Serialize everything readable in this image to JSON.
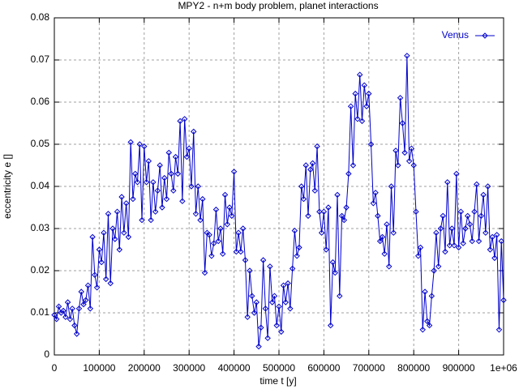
{
  "chart_data": {
    "type": "line",
    "title": "MPY2 - n+m body problem, planet interactions",
    "xlabel": "time t [y]",
    "ylabel": "eccentricity e []",
    "xlim": [
      0,
      1000000
    ],
    "ylim": [
      0,
      0.08
    ],
    "xticks": [
      0,
      100000,
      200000,
      300000,
      400000,
      500000,
      600000,
      700000,
      800000,
      900000,
      {
        "value": 1000000,
        "label": "1e+06"
      }
    ],
    "yticks": [
      0,
      0.01,
      0.02,
      0.03,
      0.04,
      0.05,
      0.06,
      0.07,
      0.08
    ],
    "grid": true,
    "legend": "top-right",
    "x": [
      0,
      5000,
      10000,
      15000,
      20000,
      25000,
      30000,
      35000,
      40000,
      45000,
      50000,
      55000,
      60000,
      65000,
      70000,
      75000,
      80000,
      85000,
      90000,
      95000,
      100000,
      105000,
      110000,
      115000,
      120000,
      125000,
      130000,
      135000,
      140000,
      145000,
      150000,
      155000,
      160000,
      165000,
      170000,
      175000,
      180000,
      185000,
      190000,
      195000,
      200000,
      205000,
      210000,
      215000,
      220000,
      225000,
      230000,
      235000,
      240000,
      245000,
      250000,
      255000,
      260000,
      265000,
      270000,
      275000,
      280000,
      285000,
      290000,
      295000,
      300000,
      305000,
      310000,
      315000,
      320000,
      325000,
      330000,
      335000,
      340000,
      345000,
      350000,
      355000,
      360000,
      365000,
      370000,
      375000,
      380000,
      385000,
      390000,
      395000,
      400000,
      405000,
      410000,
      415000,
      420000,
      425000,
      430000,
      435000,
      440000,
      445000,
      450000,
      455000,
      460000,
      465000,
      470000,
      475000,
      480000,
      485000,
      490000,
      495000,
      500000,
      505000,
      510000,
      515000,
      520000,
      525000,
      530000,
      535000,
      540000,
      545000,
      550000,
      555000,
      560000,
      565000,
      570000,
      575000,
      580000,
      585000,
      590000,
      595000,
      600000,
      605000,
      610000,
      615000,
      620000,
      625000,
      630000,
      635000,
      640000,
      645000,
      650000,
      655000,
      660000,
      665000,
      670000,
      675000,
      680000,
      685000,
      690000,
      695000,
      700000,
      705000,
      710000,
      715000,
      720000,
      725000,
      730000,
      735000,
      740000,
      745000,
      750000,
      755000,
      760000,
      765000,
      770000,
      775000,
      780000,
      785000,
      790000,
      795000,
      800000,
      805000,
      810000,
      815000,
      820000,
      825000,
      830000,
      835000,
      840000,
      845000,
      850000,
      855000,
      860000,
      865000,
      870000,
      875000,
      880000,
      885000,
      890000,
      895000,
      900000,
      905000,
      910000,
      915000,
      920000,
      925000,
      930000,
      935000,
      940000,
      945000,
      950000,
      955000,
      960000,
      965000,
      970000,
      975000,
      980000,
      985000,
      990000,
      995000,
      1000000
    ],
    "series": [
      {
        "name": "Venus",
        "color": "#0000cc",
        "values": [
          0.0095,
          0.0085,
          0.0115,
          0.01,
          0.0105,
          0.009,
          0.0125,
          0.0085,
          0.011,
          0.007,
          0.005,
          0.011,
          0.015,
          0.012,
          0.013,
          0.0165,
          0.011,
          0.028,
          0.019,
          0.016,
          0.025,
          0.022,
          0.029,
          0.018,
          0.0335,
          0.017,
          0.03,
          0.0275,
          0.034,
          0.025,
          0.0375,
          0.029,
          0.036,
          0.028,
          0.0505,
          0.037,
          0.043,
          0.041,
          0.05,
          0.032,
          0.0495,
          0.041,
          0.046,
          0.032,
          0.041,
          0.034,
          0.039,
          0.045,
          0.035,
          0.042,
          0.037,
          0.048,
          0.043,
          0.039,
          0.047,
          0.043,
          0.0555,
          0.0365,
          0.056,
          0.047,
          0.049,
          0.04,
          0.053,
          0.0335,
          0.04,
          0.032,
          0.037,
          0.0195,
          0.029,
          0.0285,
          0.0235,
          0.0265,
          0.0345,
          0.027,
          0.03,
          0.024,
          0.038,
          0.031,
          0.035,
          0.033,
          0.0435,
          0.0245,
          0.029,
          0.0245,
          0.03,
          0.0225,
          0.009,
          0.02,
          0.014,
          0.01,
          0.0125,
          0.002,
          0.0065,
          0.0225,
          0.011,
          0.004,
          0.021,
          0.0125,
          0.014,
          0.007,
          0.0115,
          0.0055,
          0.0165,
          0.0125,
          0.017,
          0.011,
          0.0205,
          0.0295,
          0.0235,
          0.0255,
          0.04,
          0.037,
          0.045,
          0.033,
          0.044,
          0.0455,
          0.039,
          0.0495,
          0.034,
          0.029,
          0.034,
          0.025,
          0.035,
          0.007,
          0.022,
          0.0195,
          0.038,
          0.014,
          0.033,
          0.032,
          0.035,
          0.043,
          0.059,
          0.045,
          0.062,
          0.056,
          0.0665,
          0.0555,
          0.064,
          0.059,
          0.062,
          0.05,
          0.036,
          0.0385,
          0.033,
          0.027,
          0.028,
          0.024,
          0.031,
          0.021,
          0.04,
          0.029,
          0.0485,
          0.045,
          0.061,
          0.055,
          0.048,
          0.071,
          0.046,
          0.049,
          0.045,
          0.034,
          0.0235,
          0.0255,
          0.006,
          0.015,
          0.008,
          0.007,
          0.014,
          0.02,
          0.029,
          0.021,
          0.03,
          0.033,
          0.0245,
          0.041,
          0.026,
          0.03,
          0.026,
          0.043,
          0.0255,
          0.034,
          0.0265,
          0.03,
          0.033,
          0.031,
          0.027,
          0.034,
          0.0405,
          0.027,
          0.033,
          0.038,
          0.029,
          0.04,
          0.025,
          0.028,
          0.023,
          0.0285,
          0.006,
          0.027,
          0.013
        ]
      }
    ]
  }
}
